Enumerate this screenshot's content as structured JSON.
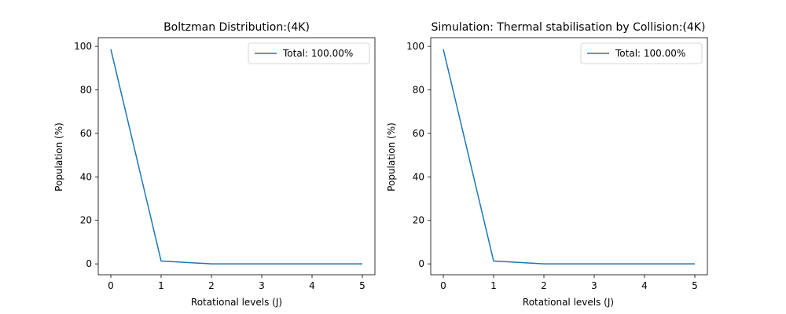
{
  "chart_data": [
    {
      "type": "line",
      "title": "Boltzman Distribution:(4K)",
      "xlabel": "Rotational levels (J)",
      "ylabel": "Population (%)",
      "xlim": [
        -0.25,
        5.25
      ],
      "ylim": [
        -5,
        104
      ],
      "xticks": [
        0,
        1,
        2,
        3,
        4,
        5
      ],
      "yticks": [
        0,
        20,
        40,
        60,
        80,
        100
      ],
      "grid": false,
      "legend_position": "top-right",
      "series": [
        {
          "name": "Total: 100.00%",
          "color": "#1f77b4",
          "x": [
            0,
            1,
            2,
            3,
            4,
            5
          ],
          "values": [
            98.7,
            1.3,
            0.0,
            0.0,
            0.0,
            0.0
          ]
        }
      ]
    },
    {
      "type": "line",
      "title": "Simulation: Thermal stabilisation by Collision:(4K)",
      "xlabel": "Rotational levels (J)",
      "ylabel": "Population (%)",
      "xlim": [
        -0.25,
        5.25
      ],
      "ylim": [
        -5,
        104
      ],
      "xticks": [
        0,
        1,
        2,
        3,
        4,
        5
      ],
      "yticks": [
        0,
        20,
        40,
        60,
        80,
        100
      ],
      "grid": false,
      "legend_position": "top-right",
      "series": [
        {
          "name": "Total: 100.00%",
          "color": "#1f77b4",
          "x": [
            0,
            1,
            2,
            3,
            4,
            5
          ],
          "values": [
            98.7,
            1.3,
            0.0,
            0.0,
            0.0,
            0.0
          ]
        }
      ]
    }
  ]
}
